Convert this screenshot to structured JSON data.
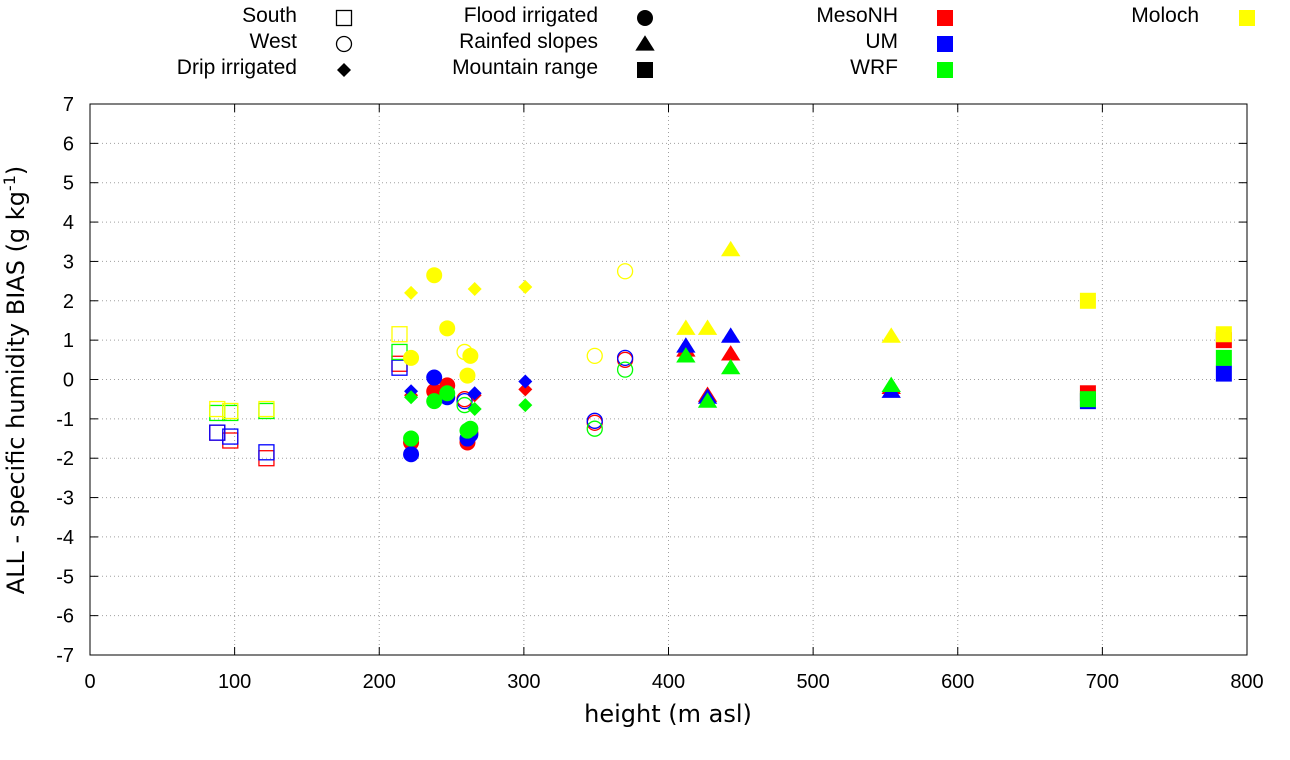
{
  "chart_data": {
    "type": "scatter",
    "title": "",
    "xlabel": "height (m asl)",
    "ylabel": "ALL - specific humidity BIAS (g kg",
    "ylabel_sup": "-1",
    "ylabel_close": ")",
    "xlim": [
      0,
      800
    ],
    "ylim": [
      -7,
      7
    ],
    "xticks": [
      "0",
      "100",
      "200",
      "300",
      "400",
      "500",
      "600",
      "700",
      "800"
    ],
    "yticks": [
      "-7",
      "-6",
      "-5",
      "-4",
      "-3",
      "-2",
      "-1",
      "0",
      "1",
      "2",
      "3",
      "4",
      "5",
      "6",
      "7"
    ],
    "grid": true,
    "legend_categories": [
      {
        "label": "South",
        "shape": "square",
        "filled": false
      },
      {
        "label": "West",
        "shape": "circle",
        "filled": false
      },
      {
        "label": "Drip irrigated",
        "shape": "diamond",
        "filled": true
      },
      {
        "label": "Flood irrigated",
        "shape": "circle",
        "filled": true
      },
      {
        "label": "Rainfed slopes",
        "shape": "triangle",
        "filled": true
      },
      {
        "label": "Mountain range",
        "shape": "square",
        "filled": true
      }
    ],
    "legend_models": [
      {
        "label": "MesoNH",
        "color": "#ff0000"
      },
      {
        "label": "UM",
        "color": "#0000ff"
      },
      {
        "label": "WRF",
        "color": "#00ff00"
      },
      {
        "label": "Moloch",
        "color": "#ffff00"
      }
    ],
    "series": [
      {
        "name": "MesoNH",
        "color": "#ff0000",
        "points": [
          {
            "x": 88,
            "y": -1.35,
            "shape": "square",
            "filled": false
          },
          {
            "x": 97,
            "y": -1.55,
            "shape": "square",
            "filled": false
          },
          {
            "x": 122,
            "y": -2.0,
            "shape": "square",
            "filled": false
          },
          {
            "x": 214,
            "y": 0.4,
            "shape": "square",
            "filled": false
          },
          {
            "x": 259,
            "y": -0.5,
            "shape": "circle",
            "filled": false
          },
          {
            "x": 349,
            "y": -1.1,
            "shape": "circle",
            "filled": false
          },
          {
            "x": 370,
            "y": 0.5,
            "shape": "circle",
            "filled": false
          },
          {
            "x": 222,
            "y": -0.4,
            "shape": "diamond",
            "filled": true
          },
          {
            "x": 266,
            "y": -0.4,
            "shape": "diamond",
            "filled": true
          },
          {
            "x": 301,
            "y": -0.25,
            "shape": "diamond",
            "filled": true
          },
          {
            "x": 222,
            "y": -1.6,
            "shape": "circle",
            "filled": true
          },
          {
            "x": 238,
            "y": -0.3,
            "shape": "circle",
            "filled": true
          },
          {
            "x": 247,
            "y": -0.15,
            "shape": "circle",
            "filled": true
          },
          {
            "x": 261,
            "y": -1.6,
            "shape": "circle",
            "filled": true
          },
          {
            "x": 263,
            "y": -1.35,
            "shape": "circle",
            "filled": true
          },
          {
            "x": 412,
            "y": 0.75,
            "shape": "triangle",
            "filled": true
          },
          {
            "x": 427,
            "y": -0.4,
            "shape": "triangle",
            "filled": true
          },
          {
            "x": 443,
            "y": 0.65,
            "shape": "triangle",
            "filled": true
          },
          {
            "x": 554,
            "y": -0.2,
            "shape": "triangle",
            "filled": true
          },
          {
            "x": 690,
            "y": -0.35,
            "shape": "square",
            "filled": true
          },
          {
            "x": 784,
            "y": 1.0,
            "shape": "square",
            "filled": true
          }
        ]
      },
      {
        "name": "UM",
        "color": "#0000ff",
        "points": [
          {
            "x": 88,
            "y": -1.35,
            "shape": "square",
            "filled": false
          },
          {
            "x": 97,
            "y": -1.45,
            "shape": "square",
            "filled": false
          },
          {
            "x": 122,
            "y": -1.85,
            "shape": "square",
            "filled": false
          },
          {
            "x": 214,
            "y": 0.3,
            "shape": "square",
            "filled": false
          },
          {
            "x": 259,
            "y": -0.55,
            "shape": "circle",
            "filled": false
          },
          {
            "x": 349,
            "y": -1.05,
            "shape": "circle",
            "filled": false
          },
          {
            "x": 370,
            "y": 0.55,
            "shape": "circle",
            "filled": false
          },
          {
            "x": 222,
            "y": -0.3,
            "shape": "diamond",
            "filled": true
          },
          {
            "x": 266,
            "y": -0.35,
            "shape": "diamond",
            "filled": true
          },
          {
            "x": 301,
            "y": -0.05,
            "shape": "diamond",
            "filled": true
          },
          {
            "x": 222,
            "y": -1.9,
            "shape": "circle",
            "filled": true
          },
          {
            "x": 238,
            "y": 0.05,
            "shape": "circle",
            "filled": true
          },
          {
            "x": 247,
            "y": -0.45,
            "shape": "circle",
            "filled": true
          },
          {
            "x": 261,
            "y": -1.5,
            "shape": "circle",
            "filled": true
          },
          {
            "x": 263,
            "y": -1.4,
            "shape": "circle",
            "filled": true
          },
          {
            "x": 412,
            "y": 0.85,
            "shape": "triangle",
            "filled": true
          },
          {
            "x": 427,
            "y": -0.45,
            "shape": "triangle",
            "filled": true
          },
          {
            "x": 443,
            "y": 1.1,
            "shape": "triangle",
            "filled": true
          },
          {
            "x": 554,
            "y": -0.3,
            "shape": "triangle",
            "filled": true
          },
          {
            "x": 690,
            "y": -0.55,
            "shape": "square",
            "filled": true
          },
          {
            "x": 784,
            "y": 0.15,
            "shape": "square",
            "filled": true
          }
        ]
      },
      {
        "name": "WRF",
        "color": "#00ff00",
        "points": [
          {
            "x": 88,
            "y": -0.85,
            "shape": "square",
            "filled": false
          },
          {
            "x": 97,
            "y": -0.85,
            "shape": "square",
            "filled": false
          },
          {
            "x": 122,
            "y": -0.8,
            "shape": "square",
            "filled": false
          },
          {
            "x": 214,
            "y": 0.7,
            "shape": "square",
            "filled": false
          },
          {
            "x": 259,
            "y": -0.65,
            "shape": "circle",
            "filled": false
          },
          {
            "x": 349,
            "y": -1.25,
            "shape": "circle",
            "filled": false
          },
          {
            "x": 370,
            "y": 0.25,
            "shape": "circle",
            "filled": false
          },
          {
            "x": 222,
            "y": -0.45,
            "shape": "diamond",
            "filled": true
          },
          {
            "x": 266,
            "y": -0.75,
            "shape": "diamond",
            "filled": true
          },
          {
            "x": 301,
            "y": -0.65,
            "shape": "diamond",
            "filled": true
          },
          {
            "x": 222,
            "y": -1.5,
            "shape": "circle",
            "filled": true
          },
          {
            "x": 238,
            "y": -0.55,
            "shape": "circle",
            "filled": true
          },
          {
            "x": 247,
            "y": -0.35,
            "shape": "circle",
            "filled": true
          },
          {
            "x": 261,
            "y": -1.3,
            "shape": "circle",
            "filled": true
          },
          {
            "x": 263,
            "y": -1.25,
            "shape": "circle",
            "filled": true
          },
          {
            "x": 412,
            "y": 0.6,
            "shape": "triangle",
            "filled": true
          },
          {
            "x": 427,
            "y": -0.55,
            "shape": "triangle",
            "filled": true
          },
          {
            "x": 443,
            "y": 0.3,
            "shape": "triangle",
            "filled": true
          },
          {
            "x": 554,
            "y": -0.15,
            "shape": "triangle",
            "filled": true
          },
          {
            "x": 690,
            "y": -0.5,
            "shape": "square",
            "filled": true
          },
          {
            "x": 784,
            "y": 0.55,
            "shape": "square",
            "filled": true
          }
        ]
      },
      {
        "name": "Moloch",
        "color": "#ffff00",
        "points": [
          {
            "x": 88,
            "y": -0.75,
            "shape": "square",
            "filled": false
          },
          {
            "x": 97,
            "y": -0.8,
            "shape": "square",
            "filled": false
          },
          {
            "x": 122,
            "y": -0.75,
            "shape": "square",
            "filled": false
          },
          {
            "x": 214,
            "y": 1.15,
            "shape": "square",
            "filled": false
          },
          {
            "x": 259,
            "y": 0.7,
            "shape": "circle",
            "filled": false
          },
          {
            "x": 349,
            "y": 0.6,
            "shape": "circle",
            "filled": false
          },
          {
            "x": 370,
            "y": 2.75,
            "shape": "circle",
            "filled": false
          },
          {
            "x": 222,
            "y": 2.2,
            "shape": "diamond",
            "filled": true
          },
          {
            "x": 266,
            "y": 2.3,
            "shape": "diamond",
            "filled": true
          },
          {
            "x": 301,
            "y": 2.35,
            "shape": "diamond",
            "filled": true
          },
          {
            "x": 222,
            "y": 0.55,
            "shape": "circle",
            "filled": true
          },
          {
            "x": 238,
            "y": 2.65,
            "shape": "circle",
            "filled": true
          },
          {
            "x": 247,
            "y": 1.3,
            "shape": "circle",
            "filled": true
          },
          {
            "x": 261,
            "y": 0.1,
            "shape": "circle",
            "filled": true
          },
          {
            "x": 263,
            "y": 0.6,
            "shape": "circle",
            "filled": true
          },
          {
            "x": 412,
            "y": 1.3,
            "shape": "triangle",
            "filled": true
          },
          {
            "x": 427,
            "y": 1.3,
            "shape": "triangle",
            "filled": true
          },
          {
            "x": 443,
            "y": 3.3,
            "shape": "triangle",
            "filled": true
          },
          {
            "x": 554,
            "y": 1.1,
            "shape": "triangle",
            "filled": true
          },
          {
            "x": 690,
            "y": 2.0,
            "shape": "square",
            "filled": true
          },
          {
            "x": 784,
            "y": 1.15,
            "shape": "square",
            "filled": true
          }
        ]
      }
    ]
  }
}
